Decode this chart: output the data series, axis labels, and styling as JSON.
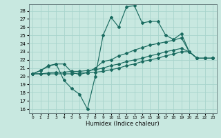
{
  "title": "",
  "xlabel": "Humidex (Indice chaleur)",
  "bg_color": "#c8e8e0",
  "grid_color": "#a8d4cc",
  "line_color": "#1a6b60",
  "xlim": [
    -0.5,
    23.5
  ],
  "ylim": [
    15.5,
    28.8
  ],
  "yticks": [
    16,
    17,
    18,
    19,
    20,
    21,
    22,
    23,
    24,
    25,
    26,
    27,
    28
  ],
  "xticks": [
    0,
    1,
    2,
    3,
    4,
    5,
    6,
    7,
    8,
    9,
    10,
    11,
    12,
    13,
    14,
    15,
    16,
    17,
    18,
    19,
    20,
    21,
    22,
    23
  ],
  "series": [
    [
      20.3,
      20.7,
      21.3,
      21.5,
      19.5,
      18.5,
      17.8,
      16.0,
      20.0,
      25.0,
      27.2,
      26.0,
      28.5,
      28.6,
      26.5,
      26.7,
      26.7,
      25.0,
      24.5,
      25.2,
      23.0,
      22.2,
      22.2,
      22.2
    ],
    [
      20.3,
      20.7,
      21.2,
      21.5,
      21.5,
      20.5,
      20.2,
      20.5,
      21.0,
      21.8,
      22.0,
      22.5,
      22.8,
      23.2,
      23.5,
      23.8,
      24.0,
      24.2,
      24.4,
      24.7,
      23.0,
      22.2,
      22.2,
      22.2
    ],
    [
      20.3,
      20.3,
      20.4,
      20.5,
      20.5,
      20.6,
      20.6,
      20.7,
      20.8,
      21.0,
      21.3,
      21.5,
      21.8,
      22.0,
      22.2,
      22.5,
      22.7,
      23.0,
      23.2,
      23.4,
      23.0,
      22.2,
      22.2,
      22.2
    ],
    [
      20.3,
      20.3,
      20.3,
      20.3,
      20.3,
      20.3,
      20.4,
      20.4,
      20.5,
      20.6,
      20.8,
      21.0,
      21.3,
      21.5,
      21.8,
      22.0,
      22.2,
      22.5,
      22.7,
      23.0,
      23.0,
      22.2,
      22.2,
      22.2
    ]
  ]
}
